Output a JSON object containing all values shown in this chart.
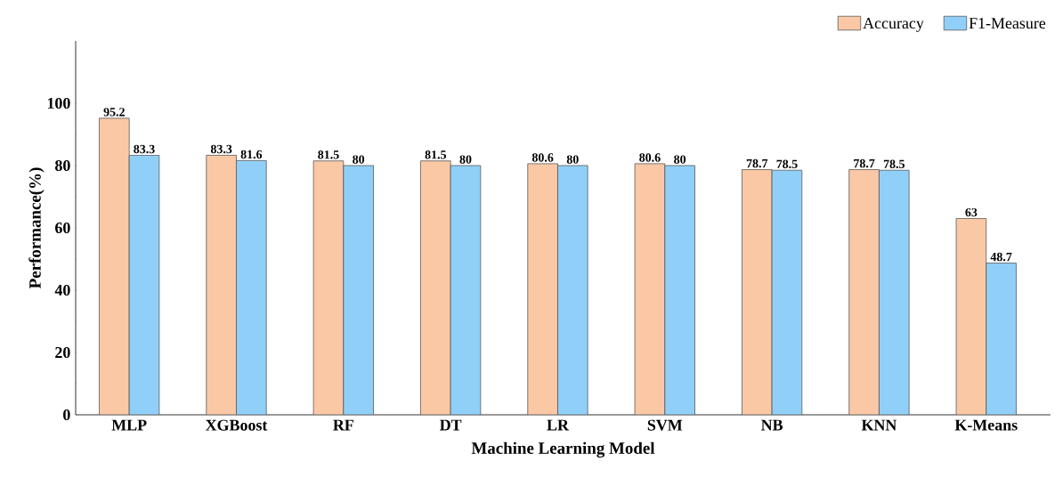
{
  "chart_data": {
    "type": "bar",
    "xlabel": "Machine Learning Model",
    "ylabel": "Performance(%)",
    "categories": [
      "MLP",
      "XGBoost",
      "RF",
      "DT",
      "LR",
      "SVM",
      "NB",
      "KNN",
      "K-Means"
    ],
    "series": [
      {
        "name": "Accuracy",
        "color": "#fbc8a5",
        "values": [
          95.2,
          83.3,
          81.5,
          81.5,
          80.6,
          80.6,
          78.7,
          78.7,
          63
        ]
      },
      {
        "name": "F1-Measure",
        "color": "#90d0f8",
        "values": [
          83.3,
          81.6,
          80,
          80,
          80,
          80,
          78.5,
          78.5,
          48.7
        ]
      }
    ],
    "ylim": [
      0,
      120
    ],
    "yticks": [
      0,
      20,
      40,
      60,
      80,
      100
    ],
    "data_labels": true,
    "legend": "top right",
    "grid": false
  }
}
